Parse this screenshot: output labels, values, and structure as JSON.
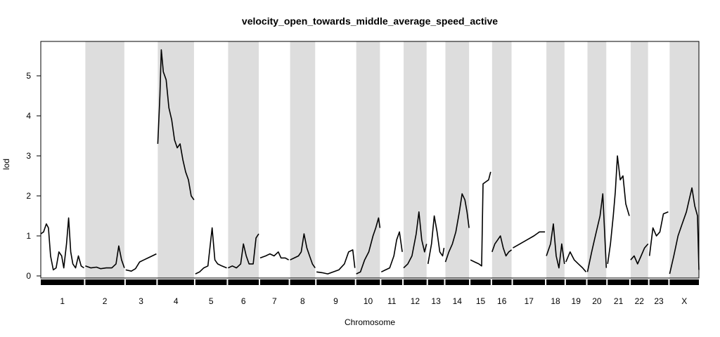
{
  "chart_data": {
    "type": "line",
    "title": "velocity_open_towards_middle_average_speed_active",
    "xlabel": "Chromosome",
    "ylabel": "lod",
    "ylim": [
      0,
      5.85
    ],
    "yticks": [
      0,
      1,
      2,
      3,
      4,
      5
    ],
    "chromosomes": [
      "1",
      "2",
      "3",
      "4",
      "5",
      "6",
      "7",
      "8",
      "9",
      "10",
      "11",
      "12",
      "13",
      "14",
      "15",
      "16",
      "17",
      "18",
      "19",
      "20",
      "21",
      "22",
      "23",
      "X"
    ],
    "chromosome_lengths": [
      62,
      56,
      44,
      52,
      45,
      44,
      41,
      36,
      55,
      34,
      30,
      33,
      23,
      34,
      29,
      28,
      46,
      26,
      29,
      27,
      31,
      25,
      27,
      42
    ],
    "shading": "alternating grey bands on even-numbered chromosomes",
    "lod_profile": [
      [
        [
          0,
          1.05
        ],
        [
          4,
          1.1
        ],
        [
          8,
          1.3
        ],
        [
          11,
          1.2
        ],
        [
          14,
          0.5
        ],
        [
          18,
          0.15
        ],
        [
          22,
          0.2
        ],
        [
          26,
          0.6
        ],
        [
          30,
          0.5
        ],
        [
          33,
          0.2
        ],
        [
          37,
          0.8
        ],
        [
          40,
          1.45
        ],
        [
          43,
          0.6
        ],
        [
          46,
          0.3
        ],
        [
          50,
          0.2
        ],
        [
          54,
          0.5
        ],
        [
          58,
          0.25
        ],
        [
          62,
          0.2
        ]
      ],
      [
        [
          0,
          0.25
        ],
        [
          8,
          0.2
        ],
        [
          16,
          0.22
        ],
        [
          22,
          0.18
        ],
        [
          30,
          0.2
        ],
        [
          38,
          0.2
        ],
        [
          44,
          0.3
        ],
        [
          48,
          0.75
        ],
        [
          52,
          0.4
        ],
        [
          56,
          0.2
        ]
      ],
      [
        [
          0,
          0.15
        ],
        [
          8,
          0.12
        ],
        [
          14,
          0.18
        ],
        [
          20,
          0.35
        ],
        [
          26,
          0.4
        ],
        [
          32,
          0.45
        ],
        [
          38,
          0.5
        ],
        [
          44,
          0.55
        ]
      ],
      [
        [
          0,
          3.3
        ],
        [
          3,
          4.5
        ],
        [
          5,
          5.65
        ],
        [
          8,
          5.1
        ],
        [
          12,
          4.9
        ],
        [
          16,
          4.2
        ],
        [
          20,
          3.9
        ],
        [
          24,
          3.4
        ],
        [
          28,
          3.2
        ],
        [
          32,
          3.3
        ],
        [
          36,
          2.9
        ],
        [
          40,
          2.6
        ],
        [
          44,
          2.4
        ],
        [
          48,
          2.0
        ],
        [
          52,
          1.9
        ]
      ],
      [
        [
          0,
          0.05
        ],
        [
          6,
          0.1
        ],
        [
          12,
          0.2
        ],
        [
          18,
          0.25
        ],
        [
          24,
          1.2
        ],
        [
          28,
          0.4
        ],
        [
          32,
          0.3
        ],
        [
          38,
          0.25
        ],
        [
          45,
          0.2
        ]
      ],
      [
        [
          0,
          0.2
        ],
        [
          6,
          0.25
        ],
        [
          12,
          0.2
        ],
        [
          18,
          0.3
        ],
        [
          22,
          0.8
        ],
        [
          26,
          0.5
        ],
        [
          30,
          0.3
        ],
        [
          36,
          0.3
        ],
        [
          40,
          0.95
        ],
        [
          44,
          1.05
        ]
      ],
      [
        [
          0,
          0.45
        ],
        [
          8,
          0.5
        ],
        [
          14,
          0.55
        ],
        [
          20,
          0.5
        ],
        [
          26,
          0.6
        ],
        [
          30,
          0.45
        ],
        [
          36,
          0.45
        ],
        [
          41,
          0.4
        ]
      ],
      [
        [
          0,
          0.4
        ],
        [
          6,
          0.45
        ],
        [
          12,
          0.5
        ],
        [
          16,
          0.6
        ],
        [
          20,
          1.05
        ],
        [
          24,
          0.7
        ],
        [
          28,
          0.5
        ],
        [
          32,
          0.3
        ],
        [
          36,
          0.2
        ]
      ],
      [
        [
          0,
          0.1
        ],
        [
          8,
          0.08
        ],
        [
          16,
          0.05
        ],
        [
          24,
          0.1
        ],
        [
          32,
          0.15
        ],
        [
          40,
          0.3
        ],
        [
          46,
          0.6
        ],
        [
          52,
          0.65
        ],
        [
          55,
          0.2
        ]
      ],
      [
        [
          0,
          0.05
        ],
        [
          6,
          0.1
        ],
        [
          12,
          0.4
        ],
        [
          18,
          0.6
        ],
        [
          24,
          1.0
        ],
        [
          28,
          1.2
        ],
        [
          32,
          1.45
        ],
        [
          34,
          1.2
        ]
      ],
      [
        [
          0,
          0.1
        ],
        [
          6,
          0.15
        ],
        [
          12,
          0.2
        ],
        [
          18,
          0.5
        ],
        [
          22,
          0.9
        ],
        [
          26,
          1.1
        ],
        [
          30,
          0.6
        ]
      ],
      [
        [
          0,
          0.2
        ],
        [
          6,
          0.3
        ],
        [
          12,
          0.5
        ],
        [
          18,
          1.05
        ],
        [
          22,
          1.6
        ],
        [
          26,
          0.9
        ],
        [
          30,
          0.6
        ],
        [
          33,
          0.8
        ]
      ],
      [
        [
          0,
          0.3
        ],
        [
          5,
          0.8
        ],
        [
          9,
          1.5
        ],
        [
          13,
          1.1
        ],
        [
          17,
          0.6
        ],
        [
          21,
          0.5
        ],
        [
          23,
          0.7
        ]
      ],
      [
        [
          0,
          0.35
        ],
        [
          5,
          0.6
        ],
        [
          10,
          0.8
        ],
        [
          15,
          1.1
        ],
        [
          20,
          1.6
        ],
        [
          24,
          2.05
        ],
        [
          28,
          1.9
        ],
        [
          31,
          1.6
        ],
        [
          34,
          1.2
        ]
      ],
      [
        [
          0,
          0.4
        ],
        [
          6,
          0.35
        ],
        [
          12,
          0.3
        ],
        [
          16,
          0.25
        ],
        [
          18,
          2.3
        ],
        [
          22,
          2.35
        ],
        [
          26,
          2.4
        ],
        [
          29,
          2.6
        ]
      ],
      [
        [
          0,
          0.6
        ],
        [
          4,
          0.8
        ],
        [
          8,
          0.9
        ],
        [
          12,
          1.0
        ],
        [
          16,
          0.7
        ],
        [
          20,
          0.5
        ],
        [
          24,
          0.6
        ],
        [
          28,
          0.65
        ]
      ],
      [
        [
          0,
          0.7
        ],
        [
          10,
          0.8
        ],
        [
          20,
          0.9
        ],
        [
          30,
          1.0
        ],
        [
          38,
          1.1
        ],
        [
          46,
          1.1
        ]
      ],
      [
        [
          0,
          0.5
        ],
        [
          6,
          0.8
        ],
        [
          10,
          1.3
        ],
        [
          14,
          0.5
        ],
        [
          18,
          0.2
        ],
        [
          22,
          0.8
        ],
        [
          26,
          0.3
        ]
      ],
      [
        [
          0,
          0.35
        ],
        [
          6,
          0.6
        ],
        [
          12,
          0.4
        ],
        [
          18,
          0.3
        ],
        [
          24,
          0.2
        ],
        [
          29,
          0.1
        ]
      ],
      [
        [
          0,
          0.1
        ],
        [
          6,
          0.6
        ],
        [
          10,
          0.9
        ],
        [
          14,
          1.2
        ],
        [
          18,
          1.5
        ],
        [
          22,
          2.05
        ],
        [
          27,
          0.2
        ]
      ],
      [
        [
          0,
          0.3
        ],
        [
          4,
          0.8
        ],
        [
          8,
          1.5
        ],
        [
          11,
          2.1
        ],
        [
          14,
          3.0
        ],
        [
          18,
          2.4
        ],
        [
          22,
          2.5
        ],
        [
          26,
          1.8
        ],
        [
          31,
          1.5
        ]
      ],
      [
        [
          0,
          0.4
        ],
        [
          5,
          0.5
        ],
        [
          10,
          0.3
        ],
        [
          15,
          0.5
        ],
        [
          20,
          0.7
        ],
        [
          25,
          0.8
        ]
      ],
      [
        [
          0,
          0.5
        ],
        [
          5,
          1.2
        ],
        [
          10,
          1.0
        ],
        [
          15,
          1.1
        ],
        [
          20,
          1.55
        ],
        [
          27,
          1.6
        ]
      ],
      [
        [
          0,
          0.05
        ],
        [
          6,
          0.5
        ],
        [
          12,
          1.0
        ],
        [
          18,
          1.3
        ],
        [
          24,
          1.6
        ],
        [
          28,
          1.9
        ],
        [
          32,
          2.2
        ],
        [
          36,
          1.75
        ],
        [
          40,
          1.5
        ],
        [
          42,
          0.15
        ]
      ]
    ]
  }
}
